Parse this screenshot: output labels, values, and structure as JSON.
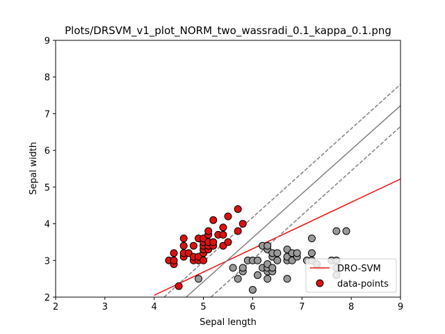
{
  "chart_data": {
    "type": "scatter",
    "title": "Plots/DRSVM_v1_plot_NORM_two_wassradi_0.1_kappa_0.1.png",
    "xlabel": "Sepal length",
    "ylabel": "Sepal width",
    "xlim": [
      2,
      9
    ],
    "ylim": [
      2,
      9
    ],
    "xticks": [
      "2",
      "3",
      "4",
      "5",
      "6",
      "7",
      "8",
      "9"
    ],
    "yticks": [
      "2",
      "3",
      "4",
      "5",
      "6",
      "7",
      "8",
      "9"
    ],
    "grid": false,
    "legend_position": "bottom-right",
    "series": [
      {
        "name": "data-points",
        "class": "setosa",
        "color": "#dd1111",
        "points": [
          [
            4.3,
            3.0
          ],
          [
            4.4,
            2.9
          ],
          [
            4.4,
            3.0
          ],
          [
            4.4,
            3.2
          ],
          [
            4.5,
            2.3
          ],
          [
            4.6,
            3.1
          ],
          [
            4.6,
            3.2
          ],
          [
            4.6,
            3.4
          ],
          [
            4.6,
            3.6
          ],
          [
            4.7,
            3.2
          ],
          [
            4.8,
            3.0
          ],
          [
            4.8,
            3.1
          ],
          [
            4.8,
            3.4
          ],
          [
            4.9,
            3.0
          ],
          [
            4.9,
            3.1
          ],
          [
            4.9,
            3.6
          ],
          [
            5.0,
            3.0
          ],
          [
            5.0,
            3.2
          ],
          [
            5.0,
            3.3
          ],
          [
            5.0,
            3.4
          ],
          [
            5.0,
            3.5
          ],
          [
            5.0,
            3.6
          ],
          [
            5.1,
            3.3
          ],
          [
            5.1,
            3.4
          ],
          [
            5.1,
            3.5
          ],
          [
            5.1,
            3.7
          ],
          [
            5.1,
            3.8
          ],
          [
            5.2,
            3.4
          ],
          [
            5.2,
            3.5
          ],
          [
            5.2,
            4.1
          ],
          [
            5.3,
            3.7
          ],
          [
            5.4,
            3.4
          ],
          [
            5.4,
            3.7
          ],
          [
            5.4,
            3.9
          ],
          [
            5.5,
            3.5
          ],
          [
            5.5,
            4.2
          ],
          [
            5.7,
            3.8
          ],
          [
            5.7,
            4.4
          ],
          [
            5.8,
            4.0
          ]
        ]
      },
      {
        "name": "",
        "class": "other",
        "color": "#999999",
        "points": [
          [
            4.9,
            2.5
          ],
          [
            5.6,
            2.8
          ],
          [
            5.7,
            2.5
          ],
          [
            5.8,
            2.7
          ],
          [
            5.8,
            2.8
          ],
          [
            5.9,
            3.0
          ],
          [
            6.0,
            2.2
          ],
          [
            6.0,
            3.0
          ],
          [
            6.1,
            2.6
          ],
          [
            6.1,
            3.0
          ],
          [
            6.2,
            2.8
          ],
          [
            6.2,
            3.4
          ],
          [
            6.3,
            2.5
          ],
          [
            6.3,
            2.7
          ],
          [
            6.3,
            2.8
          ],
          [
            6.3,
            2.9
          ],
          [
            6.3,
            3.3
          ],
          [
            6.3,
            3.4
          ],
          [
            6.4,
            2.7
          ],
          [
            6.4,
            2.8
          ],
          [
            6.4,
            3.1
          ],
          [
            6.4,
            3.2
          ],
          [
            6.5,
            3.0
          ],
          [
            6.5,
            3.2
          ],
          [
            6.7,
            2.5
          ],
          [
            6.7,
            3.0
          ],
          [
            6.7,
            3.1
          ],
          [
            6.7,
            3.3
          ],
          [
            6.8,
            3.0
          ],
          [
            6.8,
            3.2
          ],
          [
            6.9,
            3.1
          ],
          [
            6.9,
            3.2
          ],
          [
            7.1,
            3.0
          ],
          [
            7.2,
            3.0
          ],
          [
            7.2,
            3.2
          ],
          [
            7.2,
            3.6
          ],
          [
            7.3,
            2.9
          ],
          [
            7.6,
            3.0
          ],
          [
            7.7,
            2.6
          ],
          [
            7.7,
            2.8
          ],
          [
            7.7,
            3.0
          ],
          [
            7.7,
            3.8
          ],
          [
            7.9,
            3.8
          ]
        ]
      }
    ],
    "lines": [
      {
        "name": "DRO-SVM",
        "color": "#ee1111",
        "dash": false,
        "from": [
          4.0,
          2.05
        ],
        "to": [
          9.0,
          5.22
        ]
      },
      {
        "name": "",
        "color": "#808080",
        "dash": false,
        "from": [
          4.65,
          2.0
        ],
        "to": [
          9.0,
          7.22
        ]
      },
      {
        "name": "",
        "color": "#808080",
        "dash": true,
        "from": [
          4.2,
          2.0
        ],
        "to": [
          9.0,
          7.8
        ]
      },
      {
        "name": "",
        "color": "#808080",
        "dash": true,
        "from": [
          5.15,
          2.0
        ],
        "to": [
          9.0,
          6.65
        ]
      }
    ],
    "legend": [
      {
        "label": "DRO-SVM",
        "kind": "line",
        "color": "#ee1111"
      },
      {
        "label": "data-points",
        "kind": "marker",
        "color": "#dd1111"
      }
    ]
  }
}
